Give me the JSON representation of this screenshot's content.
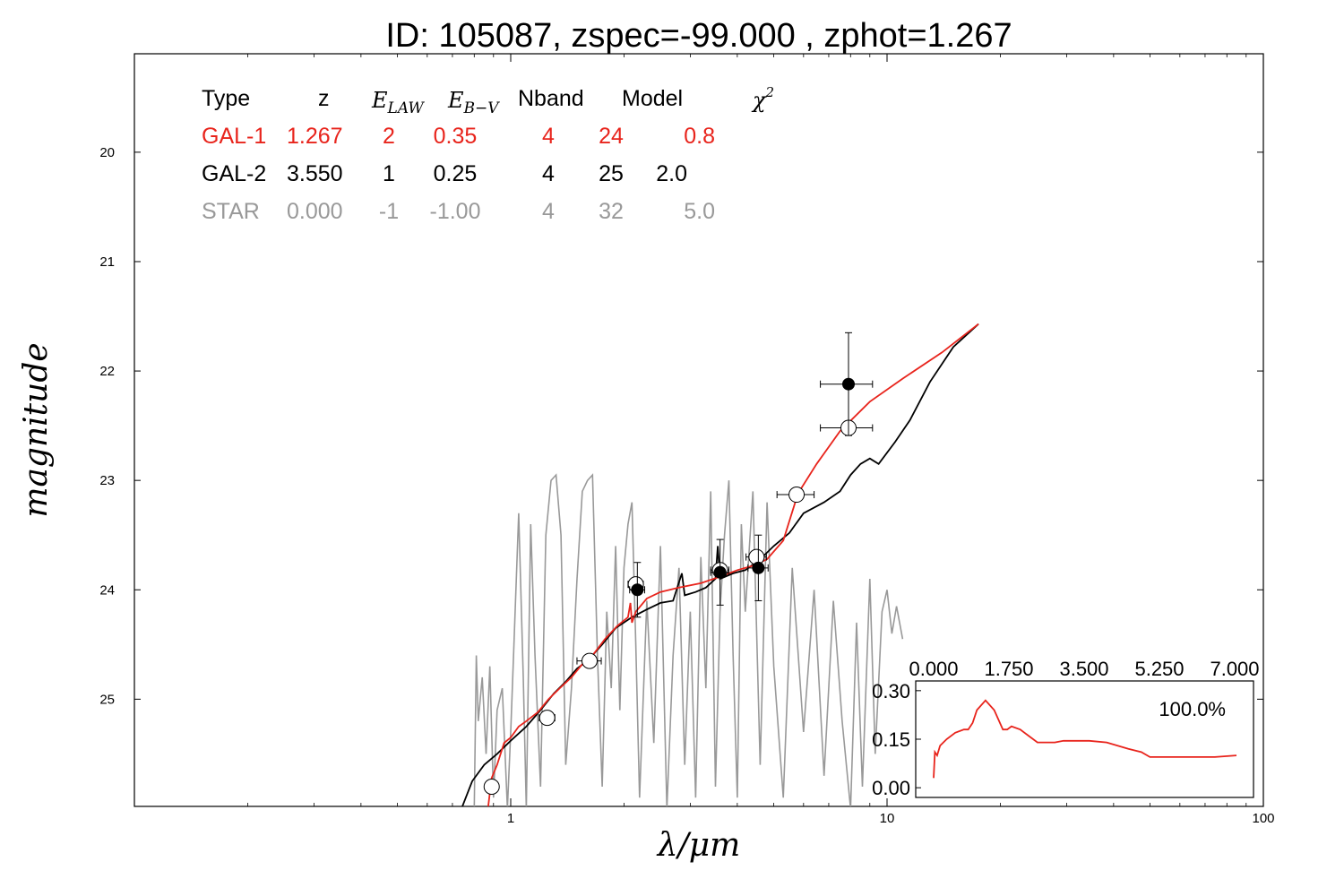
{
  "chart_data": [
    {
      "type": "line",
      "title": "ID:  105087, zspec=-99.000 , zphot=1.267",
      "xlabel": "λ/μm",
      "ylabel": "magnitude",
      "x_scale": "log",
      "xlim": [
        0.1,
        100
      ],
      "ylim": [
        25.98,
        19.1
      ],
      "y_inverted": true,
      "x_ticks": [
        {
          "value": 1,
          "label": "1"
        },
        {
          "value": 10,
          "label": "10"
        },
        {
          "value": 100,
          "label": "100"
        }
      ],
      "y_ticks": [
        {
          "value": 20,
          "label": "20"
        },
        {
          "value": 21,
          "label": "21"
        },
        {
          "value": 22,
          "label": "22"
        },
        {
          "value": 23,
          "label": "23"
        },
        {
          "value": 24,
          "label": "24"
        },
        {
          "value": 25,
          "label": "25"
        }
      ],
      "table": {
        "headers": {
          "type": "Type",
          "z": "z",
          "elaw": "E_LAW",
          "ebv": "E_B−V",
          "nband": "Nband",
          "model": "Model",
          "chi2": "χ²"
        },
        "rows": [
          {
            "type": "GAL-1",
            "z": "1.267",
            "elaw": "2",
            "ebv": "0.35",
            "nband": "4",
            "model": "24",
            "chi2": "0.8",
            "color": "#e8241c"
          },
          {
            "type": "GAL-2",
            "z": "3.550",
            "elaw": "1",
            "ebv": "0.25",
            "nband": "4",
            "model": "25",
            "chi2": "2.0",
            "color": "#000000"
          },
          {
            "type": "STAR",
            "z": "0.000",
            "elaw": "-1",
            "ebv": "-1.00",
            "nband": "4",
            "model": "32",
            "chi2": "5.0",
            "color": "#999999"
          }
        ]
      },
      "series": [
        {
          "color": "#e8241c",
          "points": [
            [
              0.87,
              26.0
            ],
            [
              0.89,
              25.72
            ],
            [
              0.92,
              25.6
            ],
            [
              0.96,
              25.4
            ],
            [
              1.0,
              25.35
            ],
            [
              1.05,
              25.25
            ],
            [
              1.1,
              25.2
            ],
            [
              1.18,
              25.12
            ],
            [
              1.26,
              25.0
            ],
            [
              1.35,
              24.9
            ],
            [
              1.45,
              24.8
            ],
            [
              1.55,
              24.68
            ],
            [
              1.65,
              24.6
            ],
            [
              1.78,
              24.45
            ],
            [
              1.92,
              24.33
            ],
            [
              2.05,
              24.25
            ],
            [
              2.08,
              24.12
            ],
            [
              2.1,
              24.3
            ],
            [
              2.15,
              24.2
            ],
            [
              2.3,
              24.08
            ],
            [
              2.5,
              24.02
            ],
            [
              2.8,
              23.98
            ],
            [
              3.2,
              23.94
            ],
            [
              3.6,
              23.88
            ],
            [
              4.0,
              23.82
            ],
            [
              4.4,
              23.78
            ],
            [
              4.8,
              23.72
            ],
            [
              5.3,
              23.55
            ],
            [
              5.8,
              23.12
            ],
            [
              6.5,
              22.85
            ],
            [
              7.5,
              22.55
            ],
            [
              9.0,
              22.28
            ],
            [
              11.0,
              22.07
            ],
            [
              14.0,
              21.83
            ],
            [
              17.5,
              21.57
            ]
          ]
        },
        {
          "color": "#000000",
          "points": [
            [
              0.74,
              26.0
            ],
            [
              0.79,
              25.75
            ],
            [
              0.85,
              25.6
            ],
            [
              0.92,
              25.5
            ],
            [
              1.0,
              25.38
            ],
            [
              1.1,
              25.25
            ],
            [
              1.2,
              25.1
            ],
            [
              1.3,
              24.95
            ],
            [
              1.4,
              24.84
            ],
            [
              1.5,
              24.72
            ],
            [
              1.6,
              24.65
            ],
            [
              1.75,
              24.5
            ],
            [
              1.9,
              24.35
            ],
            [
              2.1,
              24.25
            ],
            [
              2.3,
              24.18
            ],
            [
              2.5,
              24.12
            ],
            [
              2.7,
              24.1
            ],
            [
              2.85,
              23.85
            ],
            [
              2.9,
              24.05
            ],
            [
              3.1,
              24.02
            ],
            [
              3.3,
              23.98
            ],
            [
              3.5,
              23.9
            ],
            [
              3.55,
              23.6
            ],
            [
              3.6,
              23.9
            ],
            [
              3.9,
              23.85
            ],
            [
              4.2,
              23.82
            ],
            [
              4.6,
              23.72
            ],
            [
              5.0,
              23.6
            ],
            [
              5.5,
              23.48
            ],
            [
              6.0,
              23.3
            ],
            [
              6.8,
              23.2
            ],
            [
              7.5,
              23.1
            ],
            [
              8.0,
              22.95
            ],
            [
              8.5,
              22.85
            ],
            [
              9.0,
              22.8
            ],
            [
              9.5,
              22.85
            ],
            [
              10.5,
              22.65
            ],
            [
              11.5,
              22.45
            ],
            [
              13.0,
              22.1
            ],
            [
              15.0,
              21.78
            ],
            [
              17.5,
              21.57
            ]
          ]
        },
        {
          "color": "#999999",
          "points": [
            [
              0.8,
              26.0
            ],
            [
              0.81,
              24.6
            ],
            [
              0.82,
              25.2
            ],
            [
              0.84,
              24.8
            ],
            [
              0.86,
              25.5
            ],
            [
              0.88,
              24.7
            ],
            [
              0.9,
              25.9
            ],
            [
              0.92,
              25.1
            ],
            [
              0.95,
              24.9
            ],
            [
              0.98,
              26.0
            ],
            [
              1.0,
              25.3
            ],
            [
              1.02,
              24.5
            ],
            [
              1.05,
              23.3
            ],
            [
              1.08,
              24.8
            ],
            [
              1.1,
              26.0
            ],
            [
              1.13,
              23.4
            ],
            [
              1.16,
              24.6
            ],
            [
              1.2,
              25.8
            ],
            [
              1.24,
              23.5
            ],
            [
              1.28,
              23.0
            ],
            [
              1.32,
              22.95
            ],
            [
              1.36,
              23.5
            ],
            [
              1.4,
              25.6
            ],
            [
              1.45,
              24.9
            ],
            [
              1.5,
              23.9
            ],
            [
              1.55,
              23.1
            ],
            [
              1.6,
              23.0
            ],
            [
              1.65,
              22.95
            ],
            [
              1.7,
              24.6
            ],
            [
              1.75,
              25.8
            ],
            [
              1.8,
              24.2
            ],
            [
              1.85,
              24.9
            ],
            [
              1.9,
              23.6
            ],
            [
              1.95,
              25.1
            ],
            [
              2.0,
              23.8
            ],
            [
              2.05,
              23.4
            ],
            [
              2.1,
              23.2
            ],
            [
              2.15,
              24.5
            ],
            [
              2.2,
              25.9
            ],
            [
              2.3,
              24.1
            ],
            [
              2.4,
              25.4
            ],
            [
              2.5,
              23.6
            ],
            [
              2.6,
              26.0
            ],
            [
              2.7,
              24.6
            ],
            [
              2.8,
              23.8
            ],
            [
              2.9,
              25.6
            ],
            [
              3.0,
              24.2
            ],
            [
              3.1,
              25.9
            ],
            [
              3.2,
              23.7
            ],
            [
              3.3,
              24.9
            ],
            [
              3.4,
              23.1
            ],
            [
              3.5,
              25.8
            ],
            [
              3.6,
              24.2
            ],
            [
              3.7,
              23.5
            ],
            [
              3.8,
              23.0
            ],
            [
              3.9,
              24.6
            ],
            [
              4.0,
              25.9
            ],
            [
              4.1,
              23.4
            ],
            [
              4.2,
              24.2
            ],
            [
              4.4,
              23.1
            ],
            [
              4.6,
              25.6
            ],
            [
              4.8,
              23.2
            ],
            [
              5.0,
              24.7
            ],
            [
              5.3,
              25.9
            ],
            [
              5.6,
              23.8
            ],
            [
              6.0,
              25.3
            ],
            [
              6.4,
              24.0
            ],
            [
              6.8,
              25.7
            ],
            [
              7.2,
              24.1
            ],
            [
              7.6,
              25.2
            ],
            [
              8.0,
              26.0
            ],
            [
              8.3,
              24.3
            ],
            [
              8.6,
              25.8
            ],
            [
              9.0,
              23.9
            ],
            [
              9.3,
              25.5
            ],
            [
              9.7,
              24.2
            ],
            [
              10.0,
              24.0
            ],
            [
              10.3,
              24.4
            ],
            [
              10.6,
              24.15
            ],
            [
              11.0,
              24.45
            ]
          ]
        }
      ],
      "photometry_open": [
        {
          "x": 0.89,
          "y": 25.8,
          "xerr": 0.03
        },
        {
          "x": 1.25,
          "y": 25.17,
          "xerr": 0.06
        },
        {
          "x": 1.62,
          "y": 24.65,
          "xerr": 0.12
        },
        {
          "x": 2.15,
          "y": 23.95,
          "xerr": 0.1
        },
        {
          "x": 3.6,
          "y": 23.82,
          "xerr": 0.2
        },
        {
          "x": 4.5,
          "y": 23.7,
          "xerr": 0.28
        },
        {
          "x": 5.75,
          "y": 23.13,
          "xerr": 0.65
        },
        {
          "x": 7.9,
          "y": 22.52,
          "xerr": 1.25
        }
      ],
      "photometry_filled": [
        {
          "x": 2.17,
          "y": 24.0,
          "xerr": 0.1,
          "yerr": 0.25
        },
        {
          "x": 3.6,
          "y": 23.84,
          "xerr": 0.2,
          "yerr": 0.3
        },
        {
          "x": 4.55,
          "y": 23.8,
          "xerr": 0.28,
          "yerr": 0.3
        },
        {
          "x": 7.9,
          "y": 22.12,
          "xerr": 1.25,
          "yerr": 0.47
        }
      ]
    },
    {
      "type": "line",
      "title": "",
      "xlim": [
        0.0,
        7.0
      ],
      "ylim": [
        -0.03,
        0.33
      ],
      "x_ticks": [
        "0.000",
        "1.750",
        "3.500",
        "5.250",
        "7.000"
      ],
      "y_ticks": [
        "0.30",
        "0.15",
        "0.00"
      ],
      "annotation": "100.0%",
      "series": [
        {
          "color": "#e8241c",
          "x": [
            0.0,
            0.03,
            0.08,
            0.15,
            0.3,
            0.5,
            0.7,
            0.8,
            0.9,
            1.0,
            1.2,
            1.4,
            1.6,
            1.7,
            1.8,
            2.0,
            2.2,
            2.4,
            2.6,
            2.8,
            3.0,
            3.2,
            3.6,
            4.0,
            4.5,
            4.8,
            5.0,
            5.5,
            6.0,
            6.5,
            7.0
          ],
          "y": [
            0.03,
            0.11,
            0.1,
            0.13,
            0.15,
            0.17,
            0.18,
            0.18,
            0.2,
            0.24,
            0.27,
            0.24,
            0.18,
            0.18,
            0.19,
            0.18,
            0.16,
            0.14,
            0.14,
            0.14,
            0.145,
            0.145,
            0.145,
            0.14,
            0.12,
            0.11,
            0.095,
            0.095,
            0.095,
            0.095,
            0.1
          ]
        }
      ]
    }
  ]
}
